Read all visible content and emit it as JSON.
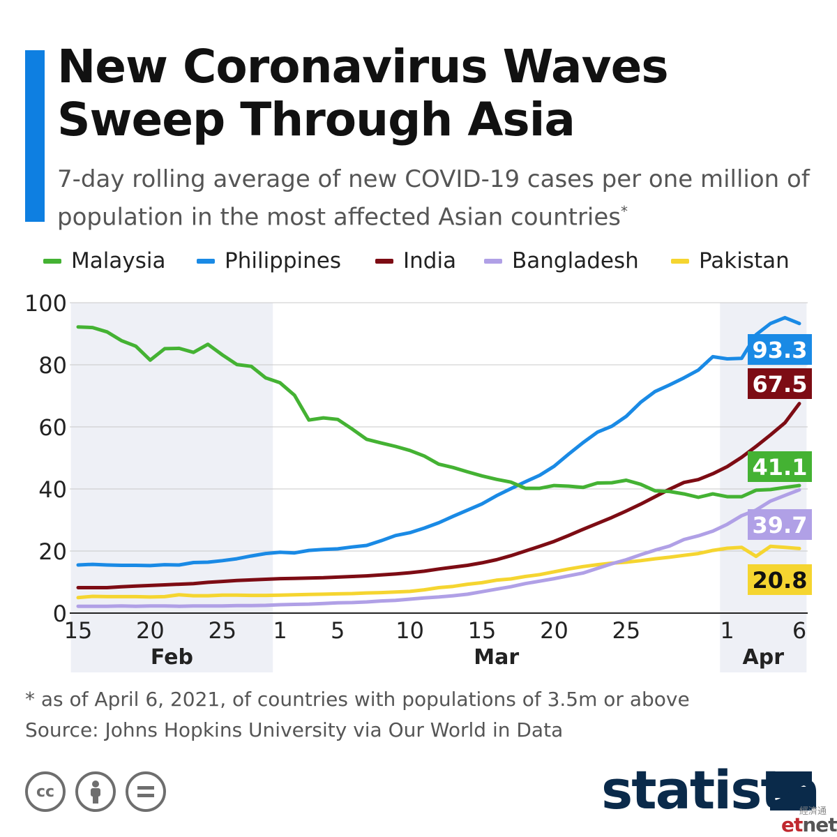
{
  "header": {
    "title": "New Coronavirus Waves Sweep Through Asia",
    "subtitle": "7-day rolling average of new COVID-19 cases per one million of population in the most affected Asian countries",
    "subtitle_mark": "*"
  },
  "footer": {
    "footnote": "* as of April 6, 2021, of countries with populations of 3.5m or above",
    "source": "Source: Johns Hopkins University via Our World in Data",
    "brand": "statista",
    "watermark_cn": "經濟通",
    "watermark_et": "et",
    "watermark_net": "net"
  },
  "license_icons": [
    "cc-icon",
    "attribution-icon",
    "no-derivatives-icon"
  ],
  "colors": {
    "accent": "#0e7fe1",
    "brand": "#0a2a4a",
    "shade": "#eef0f6",
    "grid": "#c8c8c8"
  },
  "chart_data": {
    "type": "line",
    "title": "New Coronavirus Waves Sweep Through Asia",
    "ylim": [
      0,
      100
    ],
    "yticks": [
      "0",
      "20",
      "40",
      "60",
      "80",
      "100"
    ],
    "xticks": [
      {
        "date": "2021-02-15",
        "label": "15"
      },
      {
        "date": "2021-02-20",
        "label": "20"
      },
      {
        "date": "2021-02-25",
        "label": "25"
      },
      {
        "date": "2021-03-01",
        "label": "1"
      },
      {
        "date": "2021-03-05",
        "label": "5"
      },
      {
        "date": "2021-03-10",
        "label": "10"
      },
      {
        "date": "2021-03-15",
        "label": "15"
      },
      {
        "date": "2021-03-20",
        "label": "20"
      },
      {
        "date": "2021-03-25",
        "label": "25"
      },
      {
        "date": "2021-04-01",
        "label": "1"
      },
      {
        "date": "2021-04-06",
        "label": "6"
      }
    ],
    "months": [
      {
        "label": "Feb",
        "from": "2021-02-15",
        "to": "2021-02-28",
        "shaded": true
      },
      {
        "label": "Mar",
        "from": "2021-03-01",
        "to": "2021-03-31",
        "shaded": false
      },
      {
        "label": "Apr",
        "from": "2021-04-01",
        "to": "2021-04-06",
        "shaded": true
      }
    ],
    "x": [
      "2021-02-15",
      "2021-02-16",
      "2021-02-17",
      "2021-02-18",
      "2021-02-19",
      "2021-02-20",
      "2021-02-21",
      "2021-02-22",
      "2021-02-23",
      "2021-02-24",
      "2021-02-25",
      "2021-02-26",
      "2021-02-27",
      "2021-02-28",
      "2021-03-01",
      "2021-03-02",
      "2021-03-03",
      "2021-03-04",
      "2021-03-05",
      "2021-03-06",
      "2021-03-07",
      "2021-03-08",
      "2021-03-09",
      "2021-03-10",
      "2021-03-11",
      "2021-03-12",
      "2021-03-13",
      "2021-03-14",
      "2021-03-15",
      "2021-03-16",
      "2021-03-17",
      "2021-03-18",
      "2021-03-19",
      "2021-03-20",
      "2021-03-21",
      "2021-03-22",
      "2021-03-23",
      "2021-03-24",
      "2021-03-25",
      "2021-03-26",
      "2021-03-27",
      "2021-03-28",
      "2021-03-29",
      "2021-03-30",
      "2021-03-31",
      "2021-04-01",
      "2021-04-02",
      "2021-04-03",
      "2021-04-04",
      "2021-04-05",
      "2021-04-06"
    ],
    "series": [
      {
        "name": "Malaysia",
        "color": "#44b233",
        "end_label": "41.1",
        "values": [
          92.2,
          92.0,
          90.6,
          87.8,
          86.0,
          81.5,
          85.2,
          85.3,
          84.0,
          86.6,
          83.2,
          80.1,
          79.5,
          75.8,
          74.2,
          70.2,
          62.2,
          62.9,
          62.4,
          59.3,
          56.0,
          54.8,
          53.7,
          52.4,
          50.6,
          48.0,
          46.9,
          45.5,
          44.2,
          43.1,
          42.2,
          40.2,
          40.2,
          41.1,
          40.9,
          40.5,
          41.9,
          42.0,
          42.8,
          41.5,
          39.4,
          39.2,
          38.4,
          37.3,
          38.4,
          37.5,
          37.5,
          39.6,
          39.8,
          40.5,
          41.1
        ]
      },
      {
        "name": "Philippines",
        "color": "#1a8ae5",
        "end_label": "93.3",
        "values": [
          15.5,
          15.7,
          15.5,
          15.4,
          15.4,
          15.3,
          15.6,
          15.5,
          16.3,
          16.4,
          16.9,
          17.5,
          18.4,
          19.2,
          19.6,
          19.4,
          20.2,
          20.5,
          20.7,
          21.3,
          21.8,
          23.3,
          25.0,
          25.9,
          27.4,
          29.1,
          31.2,
          33.2,
          35.2,
          37.8,
          40.1,
          42.3,
          44.4,
          47.3,
          51.2,
          54.9,
          58.3,
          60.2,
          63.4,
          67.9,
          71.4,
          73.5,
          75.8,
          78.3,
          82.6,
          81.9,
          82.1,
          89.7,
          93.3,
          95.2,
          93.3
        ]
      },
      {
        "name": "India",
        "color": "#7d0c14",
        "end_label": "67.5",
        "values": [
          8.2,
          8.2,
          8.2,
          8.5,
          8.7,
          8.9,
          9.1,
          9.3,
          9.5,
          9.9,
          10.2,
          10.5,
          10.7,
          10.9,
          11.1,
          11.2,
          11.3,
          11.4,
          11.6,
          11.8,
          12.0,
          12.3,
          12.6,
          13.0,
          13.5,
          14.2,
          14.8,
          15.4,
          16.2,
          17.2,
          18.5,
          20.0,
          21.5,
          23.1,
          25.0,
          27.0,
          28.9,
          30.8,
          32.9,
          35.1,
          37.5,
          39.9,
          42.1,
          43.0,
          44.9,
          47.2,
          50.2,
          53.7,
          57.4,
          61.3,
          67.5
        ]
      },
      {
        "name": "Bangladesh",
        "color": "#b0a0e6",
        "end_label": "39.7",
        "values": [
          2.2,
          2.2,
          2.2,
          2.3,
          2.2,
          2.3,
          2.3,
          2.2,
          2.3,
          2.3,
          2.3,
          2.4,
          2.4,
          2.5,
          2.7,
          2.8,
          2.9,
          3.1,
          3.3,
          3.4,
          3.6,
          3.9,
          4.1,
          4.5,
          4.9,
          5.2,
          5.6,
          6.1,
          6.9,
          7.7,
          8.5,
          9.5,
          10.3,
          11.1,
          12.0,
          12.9,
          14.4,
          15.9,
          17.2,
          18.8,
          20.3,
          21.6,
          23.7,
          24.9,
          26.4,
          28.6,
          31.4,
          33.2,
          36.1,
          37.9,
          39.7
        ]
      },
      {
        "name": "Pakistan",
        "color": "#f5d530",
        "end_label": "20.8",
        "values": [
          5.0,
          5.4,
          5.3,
          5.3,
          5.3,
          5.2,
          5.3,
          5.9,
          5.6,
          5.6,
          5.8,
          5.8,
          5.7,
          5.7,
          5.8,
          5.9,
          6.0,
          6.1,
          6.2,
          6.3,
          6.5,
          6.6,
          6.8,
          7.0,
          7.5,
          8.2,
          8.6,
          9.3,
          9.8,
          10.6,
          11.0,
          11.8,
          12.4,
          13.3,
          14.2,
          15.0,
          15.6,
          16.1,
          16.4,
          16.9,
          17.5,
          18.0,
          18.6,
          19.2,
          20.2,
          20.9,
          21.2,
          18.3,
          21.5,
          21.2,
          20.8
        ]
      }
    ]
  }
}
